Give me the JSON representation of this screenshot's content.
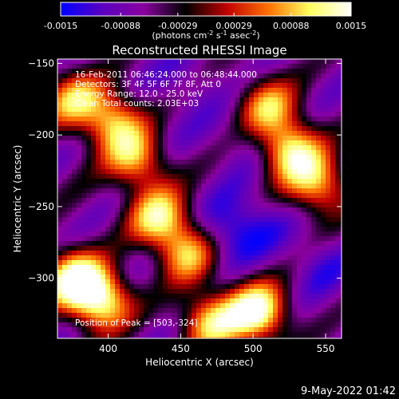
{
  "colorbar": {
    "ticks": [
      "-0.0015",
      "-0.00088",
      "-0.00029",
      "0.00029",
      "0.00088",
      "0.0015"
    ],
    "tick_values": [
      -0.0015,
      -0.00088,
      -0.00029,
      0.00029,
      0.00088,
      0.0015
    ],
    "range": [
      -0.0015,
      0.0015
    ],
    "units_prefix": "(photons cm",
    "units_exp1": "-2",
    "units_mid1": " s",
    "units_exp2": "-1",
    "units_mid2": " asec",
    "units_exp3": "-2",
    "units_suffix": ")",
    "colormap": [
      "#0000ff",
      "#5a00c0",
      "#8a00a0",
      "#000000",
      "#c00000",
      "#ff7000",
      "#ffff60",
      "#ffffff"
    ]
  },
  "chart_data": {
    "type": "heatmap",
    "title": "Reconstructed RHESSI Image",
    "xlabel": "Heliocentric X (arcsec)",
    "ylabel": "Heliocentric Y (arcsec)",
    "xlim": [
      365,
      561
    ],
    "ylim": [
      -342,
      -147
    ],
    "x_ticks": [
      400,
      450,
      500,
      550
    ],
    "y_ticks": [
      -150,
      -200,
      -250,
      -300
    ],
    "x_tick_labels": [
      "400",
      "450",
      "500",
      "550"
    ],
    "y_tick_labels": [
      "−150",
      "−200",
      "−250",
      "−300"
    ],
    "annotations": [
      "16-Feb-2011 06:46:24.000 to 06:48:44.000",
      "Detectors: 3F 4F 5F 6F 7F 8F, Att 0",
      "Energy Range: 12.0 - 25.0 keV",
      "Clean    Total counts: 2.03E+03"
    ],
    "peak_label": "Position of Peak = [503,-324]",
    "peak": [
      503,
      -324
    ],
    "blobs": [
      {
        "x": 403,
        "y": -190,
        "value": 0.0009
      },
      {
        "x": 420,
        "y": -218,
        "value": 0.0008
      },
      {
        "x": 435,
        "y": -258,
        "value": 0.001
      },
      {
        "x": 455,
        "y": -282,
        "value": 0.0008
      },
      {
        "x": 375,
        "y": -300,
        "value": 0.0012
      },
      {
        "x": 395,
        "y": -315,
        "value": 0.0014
      },
      {
        "x": 470,
        "y": -330,
        "value": 0.0009
      },
      {
        "x": 503,
        "y": -324,
        "value": 0.0015
      },
      {
        "x": 525,
        "y": -210,
        "value": 0.0011
      },
      {
        "x": 545,
        "y": -235,
        "value": 0.0009
      },
      {
        "x": 510,
        "y": -180,
        "value": 0.0007
      },
      {
        "x": 375,
        "y": -175,
        "value": 0.0007
      },
      {
        "x": 440,
        "y": -200,
        "value": -0.0008
      },
      {
        "x": 495,
        "y": -205,
        "value": -0.001
      },
      {
        "x": 480,
        "y": -270,
        "value": -0.0014
      },
      {
        "x": 500,
        "y": -260,
        "value": -0.0012
      },
      {
        "x": 545,
        "y": -290,
        "value": -0.0011
      },
      {
        "x": 420,
        "y": -300,
        "value": -0.0008
      },
      {
        "x": 455,
        "y": -165,
        "value": -0.001
      },
      {
        "x": 545,
        "y": -160,
        "value": -0.0007
      },
      {
        "x": 380,
        "y": -240,
        "value": -0.0006
      }
    ]
  },
  "footer": {
    "timestamp": "9-May-2022 01:42"
  }
}
